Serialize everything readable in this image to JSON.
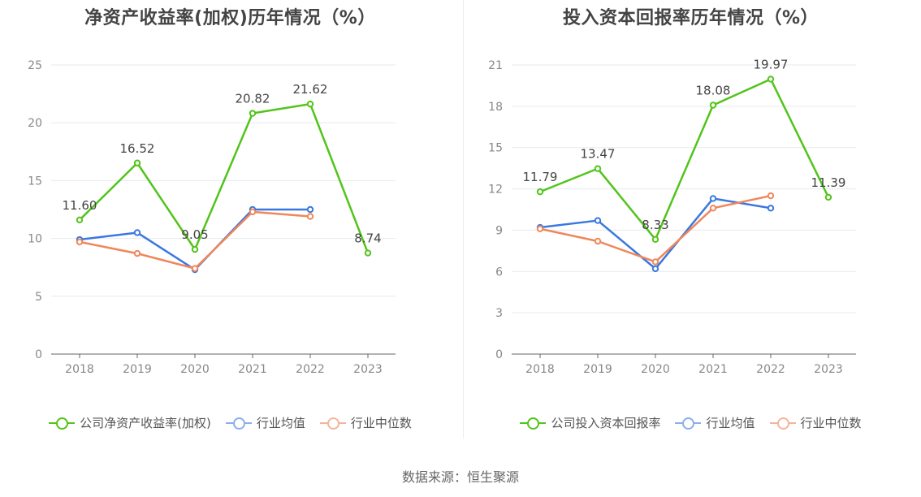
{
  "chart_data": [
    {
      "type": "line",
      "title": "净资产收益率(加权)历年情况（%）",
      "categories": [
        "2018",
        "2019",
        "2020",
        "2021",
        "2022",
        "2023"
      ],
      "ylim": [
        0,
        25
      ],
      "yticks": [
        0,
        5,
        10,
        15,
        20,
        25
      ],
      "series": [
        {
          "name": "公司净资产收益率(加权)",
          "color": "#52c41a",
          "values": [
            11.6,
            16.52,
            9.05,
            20.82,
            21.62,
            8.74
          ],
          "labels": [
            "11.60",
            "16.52",
            "9.05",
            "20.82",
            "21.62",
            "8.74"
          ]
        },
        {
          "name": "行业均值",
          "color": "#3a78e0",
          "values": [
            9.9,
            10.5,
            7.3,
            12.5,
            12.5,
            null
          ]
        },
        {
          "name": "行业中位数",
          "color": "#f0875a",
          "values": [
            9.7,
            8.7,
            7.4,
            12.3,
            11.9,
            null
          ]
        }
      ],
      "legend_colors": [
        "#52c41a",
        "#8aaef0",
        "#f5b49a"
      ],
      "grid": true,
      "legend": "bottom"
    },
    {
      "type": "line",
      "title": "投入资本回报率历年情况（%）",
      "categories": [
        "2018",
        "2019",
        "2020",
        "2021",
        "2022",
        "2023"
      ],
      "ylim": [
        0,
        21
      ],
      "yticks": [
        0,
        3,
        6,
        9,
        12,
        15,
        18,
        21
      ],
      "series": [
        {
          "name": "公司投入资本回报率",
          "color": "#52c41a",
          "values": [
            11.79,
            13.47,
            8.33,
            18.08,
            19.97,
            11.39
          ],
          "labels": [
            "11.79",
            "13.47",
            "8.33",
            "18.08",
            "19.97",
            "11.39"
          ]
        },
        {
          "name": "行业均值",
          "color": "#3a78e0",
          "values": [
            9.2,
            9.7,
            6.2,
            11.3,
            10.6,
            null
          ]
        },
        {
          "name": "行业中位数",
          "color": "#f0875a",
          "values": [
            9.1,
            8.2,
            6.7,
            10.6,
            11.5,
            null
          ]
        }
      ],
      "legend_colors": [
        "#52c41a",
        "#8aaef0",
        "#f5b49a"
      ],
      "grid": true,
      "legend": "bottom"
    }
  ],
  "footer": {
    "source": "数据来源：恒生聚源"
  }
}
